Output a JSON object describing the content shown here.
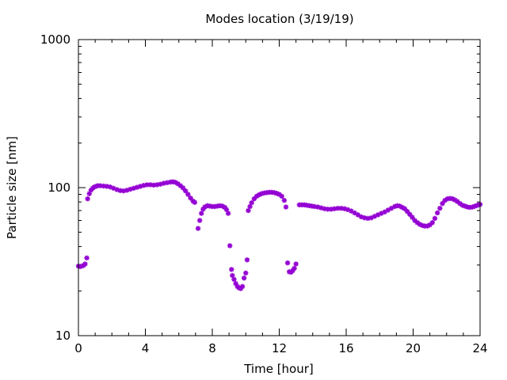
{
  "chart_data": {
    "type": "scatter",
    "title": "Modes location (3/19/19)",
    "xlabel": "Time [hour]",
    "ylabel": "Particle size [nm]",
    "xlim": [
      0,
      24
    ],
    "ylim": [
      10,
      1000
    ],
    "yscale": "log",
    "grid": false,
    "legend": "none",
    "marker_color": "#9400d3",
    "x_ticks": [
      0,
      4,
      8,
      12,
      16,
      20,
      24
    ],
    "x_tick_labels": [
      "0",
      "4",
      "8",
      "12",
      "16",
      "20",
      "24"
    ],
    "y_ticks": [
      10,
      100,
      1000
    ],
    "y_tick_labels": [
      "10",
      "100",
      "1000"
    ],
    "series": [
      {
        "points": [
          [
            0.0,
            29.5
          ],
          [
            0.1,
            29.3
          ],
          [
            0.2,
            29.5
          ],
          [
            0.3,
            29.8
          ],
          [
            0.4,
            30.5
          ],
          [
            0.5,
            33.5
          ],
          [
            0.55,
            84
          ],
          [
            0.65,
            91
          ],
          [
            0.75,
            96
          ],
          [
            0.85,
            99
          ],
          [
            0.95,
            101
          ],
          [
            1.05,
            102
          ],
          [
            1.15,
            103
          ],
          [
            1.3,
            103
          ],
          [
            1.5,
            102.5
          ],
          [
            1.7,
            102
          ],
          [
            1.9,
            101
          ],
          [
            2.1,
            99
          ],
          [
            2.3,
            97
          ],
          [
            2.5,
            95.5
          ],
          [
            2.7,
            95
          ],
          [
            2.9,
            96
          ],
          [
            3.1,
            97.5
          ],
          [
            3.3,
            99
          ],
          [
            3.5,
            100.5
          ],
          [
            3.7,
            102
          ],
          [
            3.9,
            103.5
          ],
          [
            4.1,
            104.5
          ],
          [
            4.3,
            104.5
          ],
          [
            4.5,
            104
          ],
          [
            4.7,
            104.5
          ],
          [
            4.9,
            105.5
          ],
          [
            5.1,
            107
          ],
          [
            5.3,
            108
          ],
          [
            5.5,
            109
          ],
          [
            5.65,
            109.5
          ],
          [
            5.8,
            108.5
          ],
          [
            5.95,
            106
          ],
          [
            6.1,
            103
          ],
          [
            6.25,
            99.5
          ],
          [
            6.4,
            95
          ],
          [
            6.55,
            90
          ],
          [
            6.7,
            85
          ],
          [
            6.85,
            81
          ],
          [
            6.95,
            79.5
          ],
          [
            7.15,
            53
          ],
          [
            7.25,
            60
          ],
          [
            7.35,
            67
          ],
          [
            7.45,
            71.5
          ],
          [
            7.55,
            74
          ],
          [
            7.7,
            75.5
          ],
          [
            7.85,
            75
          ],
          [
            8.0,
            74.5
          ],
          [
            8.15,
            74.5
          ],
          [
            8.3,
            75
          ],
          [
            8.45,
            75.5
          ],
          [
            8.6,
            75
          ],
          [
            8.75,
            73.5
          ],
          [
            8.85,
            71
          ],
          [
            8.95,
            67
          ],
          [
            9.05,
            40.5
          ],
          [
            9.15,
            28
          ],
          [
            9.2,
            25.5
          ],
          [
            9.3,
            24
          ],
          [
            9.4,
            22.5
          ],
          [
            9.5,
            21.5
          ],
          [
            9.6,
            21
          ],
          [
            9.7,
            20.8
          ],
          [
            9.8,
            21.5
          ],
          [
            9.9,
            24.5
          ],
          [
            10.0,
            26.5
          ],
          [
            10.08,
            32.5
          ],
          [
            10.15,
            70
          ],
          [
            10.25,
            74.5
          ],
          [
            10.35,
            79
          ],
          [
            10.5,
            84
          ],
          [
            10.65,
            87.5
          ],
          [
            10.8,
            89.5
          ],
          [
            10.95,
            91
          ],
          [
            11.1,
            92
          ],
          [
            11.25,
            92.5
          ],
          [
            11.4,
            93
          ],
          [
            11.55,
            93
          ],
          [
            11.7,
            92.5
          ],
          [
            11.85,
            91.5
          ],
          [
            12.0,
            90
          ],
          [
            12.15,
            87.5
          ],
          [
            12.3,
            82
          ],
          [
            12.4,
            74
          ],
          [
            12.5,
            31
          ],
          [
            12.6,
            27
          ],
          [
            12.7,
            26.8
          ],
          [
            12.8,
            27.5
          ],
          [
            12.9,
            28.5
          ],
          [
            13.0,
            30.5
          ],
          [
            13.2,
            76.5
          ],
          [
            13.35,
            76.5
          ],
          [
            13.5,
            76.5
          ],
          [
            13.65,
            76
          ],
          [
            13.8,
            75.5
          ],
          [
            13.95,
            75
          ],
          [
            14.1,
            74.5
          ],
          [
            14.3,
            74
          ],
          [
            14.5,
            73
          ],
          [
            14.7,
            72
          ],
          [
            14.9,
            71.5
          ],
          [
            15.1,
            71.5
          ],
          [
            15.3,
            72
          ],
          [
            15.5,
            72.5
          ],
          [
            15.7,
            72.5
          ],
          [
            15.9,
            72
          ],
          [
            16.1,
            71
          ],
          [
            16.3,
            69.5
          ],
          [
            16.5,
            67.5
          ],
          [
            16.7,
            65.5
          ],
          [
            16.9,
            63.5
          ],
          [
            17.1,
            62.5
          ],
          [
            17.3,
            62
          ],
          [
            17.5,
            62.5
          ],
          [
            17.7,
            64
          ],
          [
            17.9,
            65.5
          ],
          [
            18.1,
            67
          ],
          [
            18.3,
            68.5
          ],
          [
            18.5,
            70.5
          ],
          [
            18.7,
            72.5
          ],
          [
            18.9,
            74.5
          ],
          [
            19.05,
            75.5
          ],
          [
            19.2,
            75
          ],
          [
            19.35,
            73.5
          ],
          [
            19.5,
            72
          ],
          [
            19.65,
            69
          ],
          [
            19.8,
            66
          ],
          [
            19.95,
            63
          ],
          [
            20.1,
            60
          ],
          [
            20.25,
            58
          ],
          [
            20.4,
            56.5
          ],
          [
            20.55,
            55.5
          ],
          [
            20.7,
            55
          ],
          [
            20.85,
            55
          ],
          [
            21.0,
            56
          ],
          [
            21.15,
            58
          ],
          [
            21.3,
            62
          ],
          [
            21.45,
            67.5
          ],
          [
            21.6,
            72.5
          ],
          [
            21.75,
            78
          ],
          [
            21.9,
            82
          ],
          [
            22.05,
            84
          ],
          [
            22.2,
            84.5
          ],
          [
            22.35,
            84
          ],
          [
            22.5,
            82.5
          ],
          [
            22.65,
            80.5
          ],
          [
            22.8,
            78
          ],
          [
            22.95,
            76
          ],
          [
            23.1,
            75
          ],
          [
            23.25,
            74
          ],
          [
            23.4,
            73.5
          ],
          [
            23.55,
            74
          ],
          [
            23.7,
            75
          ],
          [
            23.85,
            76
          ],
          [
            24.0,
            77
          ]
        ]
      }
    ]
  }
}
